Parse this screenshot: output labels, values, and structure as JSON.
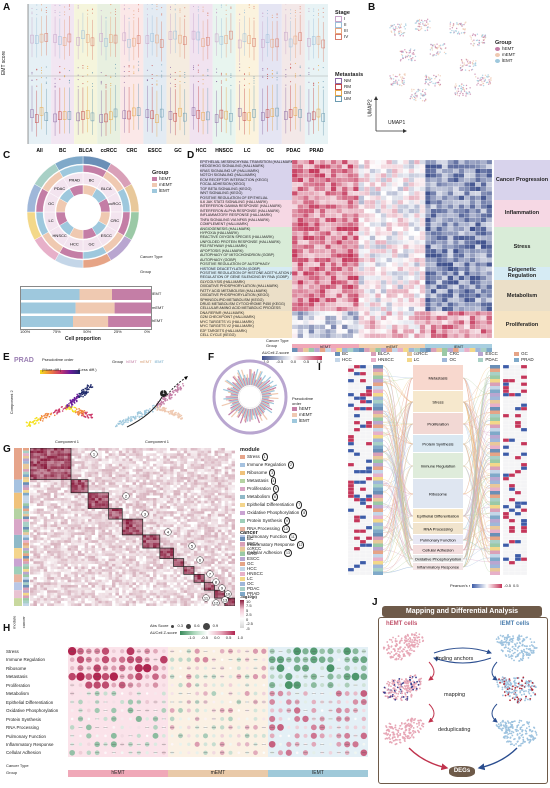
{
  "panels": [
    "A",
    "B",
    "C",
    "D",
    "E",
    "F",
    "G",
    "H",
    "I",
    "J"
  ],
  "panel_a": {
    "y_label": "EMT score",
    "cancers": [
      "All",
      "BC",
      "BLCA",
      "ccRCC",
      "CRC",
      "ESCC",
      "GC",
      "HCC",
      "HNSCC",
      "LC",
      "OC",
      "PDAC",
      "PRAD"
    ],
    "stage_title": "Stage",
    "stages": [
      "I",
      "II",
      "III",
      "IV"
    ],
    "stage_colors": [
      "#c7a3c9",
      "#9dbfd9",
      "#e7a57d",
      "#d87c6b"
    ],
    "metastasis_title": "Metastasis",
    "metastasis": [
      "NM",
      "RM",
      "DM",
      "UM"
    ],
    "metastasis_colors": [
      "#8d6aa3",
      "#c44a4a",
      "#e6a74c",
      "#6b9bb0"
    ],
    "bg_colors": [
      "#e6f0f5",
      "#f2e6f2",
      "#f5f5dc",
      "#e8f0e0",
      "#fbe8e8",
      "#e3ebf3",
      "#f5ece0",
      "#f1e3f0",
      "#e8f5ef",
      "#fbf3de",
      "#e5e5f3",
      "#f3e8e8",
      "#e8f3f5"
    ]
  },
  "panel_b": {
    "group_title": "Group",
    "groups": [
      "hEMT",
      "mEMT",
      "lEMT"
    ],
    "group_colors": [
      "#c47ea6",
      "#efc9b1",
      "#9ec8dd"
    ],
    "xlabel": "UMAP1",
    "ylabel": "UMAP2"
  },
  "panel_c": {
    "group_title": "Group",
    "groups": [
      "hEMT",
      "mEMT",
      "lEMT"
    ],
    "ring_labels": [
      "BC",
      "BLCA",
      "ccRCC",
      "CRC",
      "ESCC",
      "GC",
      "HCC",
      "HNSCC",
      "LC",
      "OC",
      "PDAC",
      "PRAD"
    ],
    "corner_labels": [
      "Cancer Type",
      "Group"
    ],
    "bars": [
      "lEMT",
      "mEMT",
      "hEMT"
    ],
    "bar_axis": [
      "100%",
      "75%",
      "50%",
      "25%",
      "0%"
    ],
    "xlabel": "Cell proportion"
  },
  "panel_d": {
    "categories": [
      "Cancer Progression",
      "Inflammation",
      "Stress",
      "Epigenetic Regulation",
      "Metabolism",
      "Proliferation"
    ],
    "category_colors": [
      "#d8d3ec",
      "#f6d8e4",
      "#d9ecd8",
      "#d6ebf4",
      "#ebdfc8",
      "#f6e4c4"
    ],
    "rows": [
      "EPITHELIAL MESENCHYMAL TRANSITION (HALLMARK)",
      "HEDGEHOG SIGNALING (HALLMARK)",
      "KRAS SIGNALING UP (HALLMARK)",
      "NOTCH SIGNALING (HALLMARK)",
      "ECM RECEPTOR INTERACTION (KEGG)",
      "FOCAL ADHESION (KEGG)",
      "TGF BETA SIGNALING (KEGG)",
      "WNT SIGNALING (KEGG)",
      "POSITIVE REGULATION OF EPITHELIAL",
      "IL6 JAK STAT3 SIGNALING (HALLMARK)",
      "INTERFERON GAMMA RESPONSE (HALLMARK)",
      "INTERFERON ALPHA RESPONSE (HALLMARK)",
      "INFLAMMATORY RESPONSE (HALLMARK)",
      "TNFA SIGNALING VIA NFKB (HALLMARK)",
      "COMPLEMENT (HALLMARK)",
      "ANGIOGENESIS (HALLMARK)",
      "HYPOXIA (HALLMARK)",
      "REACTIVE OXYGEN SPECIES (HALLMARK)",
      "UNFOLDED PROTEIN RESPONSE (HALLMARK)",
      "P53 PATHWAY (HALLMARK)",
      "APOPTOSIS (HALLMARK)",
      "AUTOPHAGY OF MITOCHONDRION (GOBP)",
      "AUTOPHAGY (GOBP)",
      "POSITIVE REGULATION OF AUTOPHAGY",
      "HISTONE DEACETYLATION (GOBP)",
      "POSITIVE REGULATION OF HISTONE ACETYLATION (GOBP)",
      "REGULATION OF GENE SILENCING BY RNA (GOBP)",
      "GLYCOLYSIS (HALLMARK)",
      "OXIDATIVE PHOSPHORYLATION (HALLMARK)",
      "FATTY ACID METABOLISM (HALLMARK)",
      "OXIDATIVE PHOSPHORYLATION (KEGG)",
      "SPHINGOLIPID METABOLISM (KEGG)",
      "DRUG METABOLISM CYTOCHROME P450 (KEGG)",
      "CELLULAR AMINO ACID METABOLIC PROCESS",
      "DNA REPAIR (HALLMARK)",
      "G2M CHECKPOINT (HALLMARK)",
      "MYC TARGETS V1 (HALLMARK)",
      "MYC TARGETS V2 (HALLMARK)",
      "E2F TARGETS (HALLMARK)",
      "CELL CYCLE (KEGG)"
    ],
    "footer_labels": [
      "Cancer Type",
      "Group"
    ],
    "group_labels": [
      "hEMT",
      "mEMT",
      "lEMT"
    ],
    "scale_title": "AUCell Z-score",
    "scale_ticks": [
      "-1.0",
      "-0.5",
      "0.0",
      "0.5",
      "1.0"
    ],
    "legend_cancers": [
      "BC",
      "BLCA",
      "ccRCC",
      "CRC",
      "ESCC",
      "GC",
      "HCC",
      "HNSCC",
      "LC",
      "OC",
      "PDAC",
      "PRAD"
    ],
    "legend_colors": [
      "#6a8fb7",
      "#d9a0b8",
      "#e8c89a",
      "#9bc9a6",
      "#b9a6d0",
      "#e6a486",
      "#c4d6e8",
      "#e7b0c9",
      "#f3d889",
      "#9fb7d9",
      "#a8d0c6",
      "#7fa9c9"
    ]
  },
  "panel_e": {
    "title": "PRAD",
    "pseudotime_title": "Pseudotime order",
    "more_diff": "(More diff.)",
    "less_diff": "(Less diff.)",
    "group_title": "Group",
    "groups": [
      "hEMT",
      "mEMT",
      "lEMT"
    ],
    "xlabel": "Component 1",
    "ylabel": "Component 2",
    "marker": "1"
  },
  "panel_f": {
    "legend_title": "Pseudotime order",
    "groups": [
      "hEMT",
      "mEMT",
      "lEMT"
    ],
    "axis_ticks": [
      "0.4",
      "0.2",
      "0.0"
    ]
  },
  "panel_g": {
    "row_labels": [
      "module",
      "cancer"
    ],
    "module_title": "module",
    "modules": [
      {
        "name": "Stress",
        "num": "1"
      },
      {
        "name": "Immune Regulation",
        "num": "2"
      },
      {
        "name": "Ribosome",
        "num": "3"
      },
      {
        "name": "Metastasis",
        "num": "4"
      },
      {
        "name": "Proliferation",
        "num": "5"
      },
      {
        "name": "Metabolism",
        "num": "6"
      },
      {
        "name": "Epithelial Differentiation",
        "num": "7"
      },
      {
        "name": "Oxidative Phosphorylation",
        "num": "8"
      },
      {
        "name": "Protein Synthesis",
        "num": "9"
      },
      {
        "name": "RNA Processing",
        "num": "10"
      },
      {
        "name": "Pulmonary Function",
        "num": "11"
      },
      {
        "name": "Inflammatory Response",
        "num": "12"
      },
      {
        "name": "Cellular Adhesion",
        "num": "13"
      }
    ],
    "module_colors": [
      "#e6a48a",
      "#a6c2e0",
      "#f0c27b",
      "#b5d3a3",
      "#d8a6c7",
      "#8fb9c8",
      "#f4d58d",
      "#c9a3d2",
      "#9ecfb9",
      "#e8b4a0",
      "#b9c7e6",
      "#e9c3d2",
      "#c8d89e"
    ],
    "cancer_title": "cancer",
    "cancers": [
      "BC",
      "BLCA",
      "ccRCC",
      "CRC",
      "ESCC",
      "GC",
      "HCC",
      "HNSCC",
      "LC",
      "OC",
      "PDAC",
      "PRAD"
    ],
    "cancer_colors": [
      "#6a8fb7",
      "#d9a0b8",
      "#e8c89a",
      "#9bc9a6",
      "#b9a6d0",
      "#e6a486",
      "#c4d6e8",
      "#e7b0c9",
      "#f3d889",
      "#9fb7d9",
      "#a8d0c6",
      "#7fa9c9"
    ],
    "scale_title": "-log10(p)",
    "scale_ticks": [
      "10",
      "7.5",
      "5",
      "2.5",
      "0",
      "-2.5",
      "-5"
    ],
    "block_numbers": [
      "1",
      "2",
      "3",
      "4",
      "5",
      "6",
      "7",
      "8",
      "9",
      "10",
      "11",
      "12",
      "13"
    ]
  },
  "panel_h": {
    "rows": [
      "Stress",
      "Immune Regulation",
      "Ribosome",
      "Metastasis",
      "Proliferation",
      "Metabolism",
      "Epithelial Differentiation",
      "Oxidative Phosphorylation",
      "Protein Synthesis",
      "RNA Processing",
      "Pulmonary Function",
      "Inflammatory Response",
      "Cellular Adhesion"
    ],
    "footer": [
      "Cancer Type",
      "Group"
    ],
    "groups": [
      "hEMT",
      "mEMT",
      "lEMT"
    ],
    "size_title": "Abs Score",
    "size_ticks": [
      "0.3",
      "0.6",
      "0.9"
    ],
    "color_title": "AUCell Z-score",
    "color_ticks": [
      "-1.0",
      "-0.5",
      "0.0",
      "0.5",
      "1.0"
    ],
    "group_colors": [
      "#f0a8b8",
      "#e9c9a8",
      "#9fc9d9"
    ]
  },
  "panel_i": {
    "modules": [
      "Metastasis",
      "Stress",
      "Proliferation",
      "Protein Synthesis",
      "Immune Regulation",
      "Ribosome",
      "Epithelial Differentiation",
      "RNA Processing",
      "Pulmonary Function",
      "Cellular Adhesion",
      "Oxidative Phosphorylation",
      "Inflammatory Response"
    ],
    "module_colors": [
      "#f7d4c9",
      "#f5e6c8",
      "#f1d4cf",
      "#d6e6f1",
      "#dbead7",
      "#dbe3f0",
      "#f7e8c6",
      "#f0e1c8",
      "#e6e6f3",
      "#f2d9d9",
      "#e8e8e8",
      "#f3e3e3"
    ],
    "scale_title": "Pearson's r",
    "scale_ticks": [
      "-0.5",
      "0",
      "0.5"
    ]
  },
  "panel_j": {
    "title": "Mapping and Differential Analysis",
    "left_label": "hEMT cells",
    "right_label": "lEMT cells",
    "steps": [
      "finding anchors",
      "mapping",
      "deduplicating"
    ],
    "result": "DEGs"
  }
}
